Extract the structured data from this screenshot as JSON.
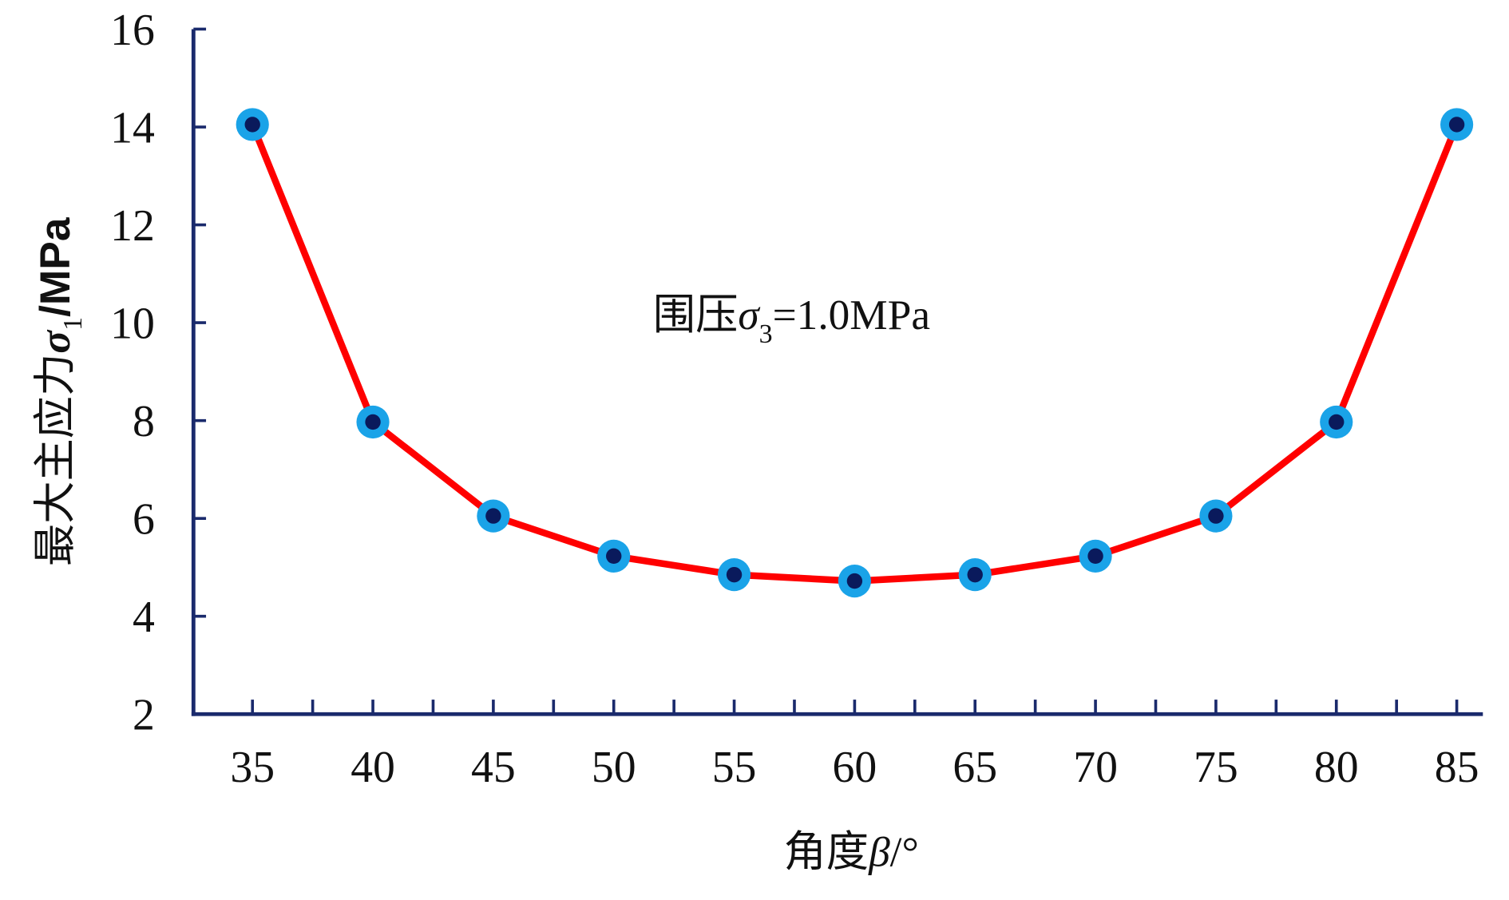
{
  "chart_data": {
    "type": "line",
    "title": "",
    "xlabel": "角度β/°",
    "xlabel_parts": {
      "cn": "角度",
      "sym": "β",
      "unit": "/°"
    },
    "ylabel": "最大主应力σ1/MPa",
    "ylabel_parts": {
      "cn": "最大主应力",
      "sym": "σ",
      "sub": "1",
      "unit": "/MPa"
    },
    "annotation": "围压σ3=1.0MPa",
    "annotation_parts": {
      "cn": "围压",
      "sym": "σ",
      "sub": "3",
      "rest": "=1.0MPa"
    },
    "x": [
      35,
      40,
      45,
      50,
      55,
      60,
      65,
      70,
      75,
      80,
      85
    ],
    "series": [
      {
        "name": "σ1",
        "values": [
          14.05,
          7.97,
          6.05,
          5.23,
          4.85,
          4.72,
          4.85,
          5.23,
          6.05,
          7.97,
          14.05
        ]
      }
    ],
    "xticks": [
      "35",
      "40",
      "45",
      "50",
      "55",
      "60",
      "65",
      "70",
      "75",
      "80",
      "85"
    ],
    "yticks": [
      "2",
      "4",
      "6",
      "8",
      "10",
      "12",
      "14",
      "16"
    ],
    "xlim": [
      32.6,
      86.1
    ],
    "ylim": [
      2,
      16
    ],
    "grid": false,
    "colors": {
      "line": "#ff0000",
      "marker_outer": "#1aa3e8",
      "marker_inner": "#0a1a5c",
      "axis": "#1a2a6c"
    }
  }
}
